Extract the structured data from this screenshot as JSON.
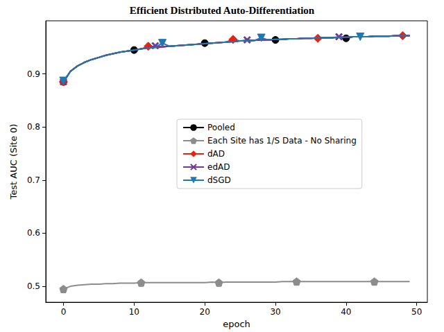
{
  "chart_data": {
    "type": "line",
    "title": "Efficient Distributed Auto-Differentiation",
    "x_label": "epoch",
    "y_label": "Test AUC (Site 0)",
    "x": [
      0,
      1,
      2,
      3,
      4,
      5,
      6,
      7,
      8,
      9,
      10,
      11,
      12,
      13,
      14,
      15,
      16,
      17,
      18,
      19,
      20,
      21,
      22,
      23,
      24,
      25,
      26,
      27,
      28,
      29,
      30,
      31,
      32,
      33,
      34,
      35,
      36,
      37,
      38,
      39,
      40,
      41,
      42,
      43,
      44,
      45,
      46,
      47,
      48,
      49
    ],
    "xlim": [
      -2.5,
      51.5
    ],
    "xticks": [
      0,
      10,
      20,
      30,
      40,
      50
    ],
    "ylim": [
      0.47,
      1.0
    ],
    "yticks": [
      0.5,
      0.6,
      0.7,
      0.8,
      0.9
    ],
    "grid": false,
    "legend": "right",
    "series": [
      {
        "name": "Pooled",
        "color": "#000000",
        "marker": "circle",
        "values": [
          0.885,
          0.905,
          0.915,
          0.922,
          0.927,
          0.931,
          0.935,
          0.938,
          0.941,
          0.943,
          0.945,
          0.947,
          0.949,
          0.95,
          0.951,
          0.952,
          0.953,
          0.954,
          0.955,
          0.956,
          0.958,
          0.958,
          0.959,
          0.96,
          0.961,
          0.962,
          0.962,
          0.963,
          0.964,
          0.964,
          0.964,
          0.965,
          0.966,
          0.966,
          0.967,
          0.967,
          0.968,
          0.968,
          0.968,
          0.969,
          0.967,
          0.97,
          0.97,
          0.97,
          0.971,
          0.971,
          0.971,
          0.972,
          0.972,
          0.972
        ]
      },
      {
        "name": "Each Site has 1/S Data - No Sharing",
        "color": "#8c8c8c",
        "marker": "pentagon",
        "values": [
          0.495,
          0.5,
          0.502,
          0.503,
          0.504,
          0.504,
          0.505,
          0.505,
          0.506,
          0.506,
          0.506,
          0.507,
          0.507,
          0.507,
          0.507,
          0.507,
          0.507,
          0.507,
          0.507,
          0.507,
          0.507,
          0.508,
          0.507,
          0.508,
          0.508,
          0.508,
          0.508,
          0.508,
          0.508,
          0.508,
          0.508,
          0.509,
          0.509,
          0.509,
          0.509,
          0.509,
          0.509,
          0.509,
          0.509,
          0.509,
          0.509,
          0.509,
          0.509,
          0.509,
          0.509,
          0.509,
          0.509,
          0.509,
          0.509,
          0.509
        ]
      },
      {
        "name": "dAD",
        "color": "#f0200c",
        "marker": "diamond",
        "values": [
          0.885,
          0.905,
          0.915,
          0.922,
          0.927,
          0.931,
          0.935,
          0.938,
          0.941,
          0.943,
          0.945,
          0.947,
          0.952,
          0.95,
          0.951,
          0.952,
          0.953,
          0.954,
          0.955,
          0.956,
          0.957,
          0.958,
          0.959,
          0.96,
          0.965,
          0.962,
          0.962,
          0.963,
          0.964,
          0.964,
          0.965,
          0.965,
          0.966,
          0.966,
          0.967,
          0.967,
          0.967,
          0.968,
          0.968,
          0.969,
          0.969,
          0.97,
          0.97,
          0.97,
          0.971,
          0.971,
          0.971,
          0.972,
          0.972,
          0.972
        ]
      },
      {
        "name": "edAD",
        "color": "#6a3d9a",
        "marker": "x",
        "values": [
          0.885,
          0.905,
          0.915,
          0.922,
          0.927,
          0.931,
          0.935,
          0.938,
          0.941,
          0.943,
          0.945,
          0.947,
          0.949,
          0.953,
          0.951,
          0.952,
          0.953,
          0.954,
          0.955,
          0.956,
          0.957,
          0.958,
          0.959,
          0.96,
          0.961,
          0.962,
          0.964,
          0.963,
          0.964,
          0.964,
          0.965,
          0.965,
          0.966,
          0.966,
          0.967,
          0.967,
          0.968,
          0.968,
          0.968,
          0.97,
          0.969,
          0.97,
          0.97,
          0.97,
          0.971,
          0.971,
          0.971,
          0.972,
          0.972,
          0.972
        ]
      },
      {
        "name": "dSGD",
        "color": "#1f77b4",
        "marker": "triangle-down",
        "values": [
          0.887,
          0.905,
          0.915,
          0.922,
          0.927,
          0.931,
          0.935,
          0.938,
          0.941,
          0.943,
          0.945,
          0.947,
          0.949,
          0.95,
          0.958,
          0.952,
          0.953,
          0.954,
          0.955,
          0.956,
          0.957,
          0.958,
          0.959,
          0.96,
          0.961,
          0.962,
          0.962,
          0.963,
          0.968,
          0.964,
          0.965,
          0.965,
          0.966,
          0.966,
          0.967,
          0.967,
          0.968,
          0.968,
          0.968,
          0.969,
          0.969,
          0.97,
          0.97,
          0.97,
          0.971,
          0.971,
          0.971,
          0.972,
          0.972,
          0.972
        ]
      }
    ]
  }
}
